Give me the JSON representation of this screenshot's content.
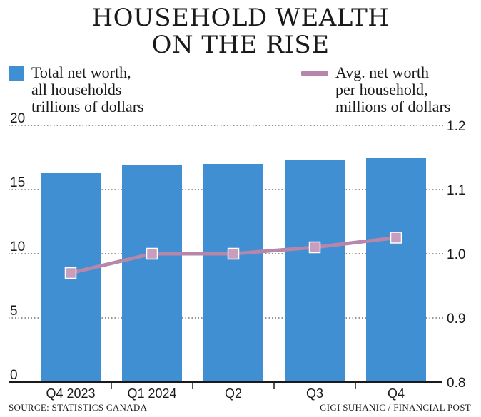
{
  "title_line1": "HOUSEHOLD WEALTH",
  "title_line2": "ON THE RISE",
  "source": "SOURCE: STATISTICS CANADA",
  "credit": "GIGI SUHANIC / FINANCIAL POST",
  "colors": {
    "bar": "#3f8fd2",
    "line": "#b687aa",
    "marker": "#c99dbe",
    "grid": "#555555"
  },
  "chart_data": {
    "type": "bar",
    "categories": [
      "Q4 2023",
      "Q1 2024",
      "Q2",
      "Q3",
      "Q4"
    ],
    "series": [
      {
        "name": "Total net worth, all households trillions of dollars",
        "type": "bar",
        "axis": "left",
        "values": [
          16.3,
          16.9,
          17.0,
          17.3,
          17.5
        ]
      },
      {
        "name": "Avg. net worth per household, millions of dollars",
        "type": "line",
        "axis": "right",
        "values": [
          0.97,
          1.0,
          1.0,
          1.01,
          1.025
        ]
      }
    ],
    "legend": {
      "left_lines": [
        "Total net worth,",
        "all households",
        "trillions of dollars"
      ],
      "right_lines": [
        "Avg. net worth",
        "per household,",
        "millions of dollars"
      ]
    },
    "y_left": {
      "ylim": [
        0,
        20
      ],
      "ticks": [
        "0",
        "5",
        "10",
        "15",
        "20"
      ]
    },
    "y_right": {
      "ylim": [
        0.8,
        1.2
      ],
      "ticks": [
        "0.8",
        "0.9",
        "1.0",
        "1.1",
        "1.2"
      ]
    },
    "grid": true,
    "legend_placement": "top"
  }
}
